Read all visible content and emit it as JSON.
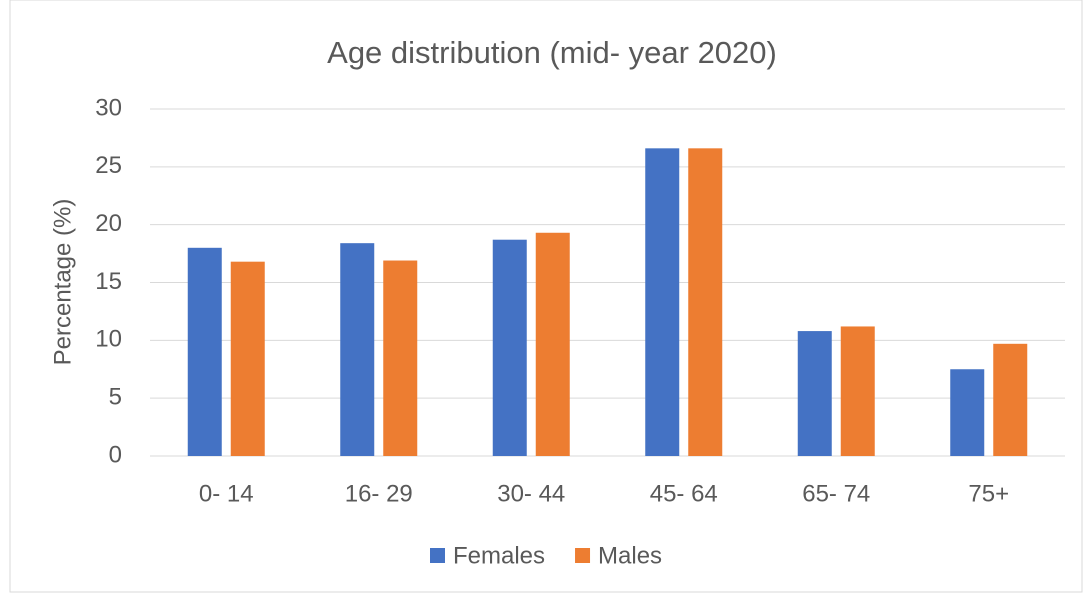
{
  "chart_data": {
    "type": "bar",
    "title": "Age distribution (mid- year 2020)",
    "y_label": "Percentage (%)",
    "categories": [
      "0- 14",
      "16- 29",
      "30- 44",
      "45- 64",
      "65- 74",
      "75+"
    ],
    "series": [
      {
        "name": "Females",
        "color": "#4472c4",
        "values": [
          18.0,
          18.4,
          18.7,
          26.6,
          10.8,
          7.5
        ]
      },
      {
        "name": "Males",
        "color": "#ed7d31",
        "values": [
          16.8,
          16.9,
          19.3,
          26.6,
          11.2,
          9.7
        ]
      }
    ],
    "ylim": [
      0,
      30
    ],
    "yticks": [
      0,
      5,
      10,
      15,
      20,
      25,
      30
    ],
    "grid": true,
    "legend": "bottom"
  }
}
